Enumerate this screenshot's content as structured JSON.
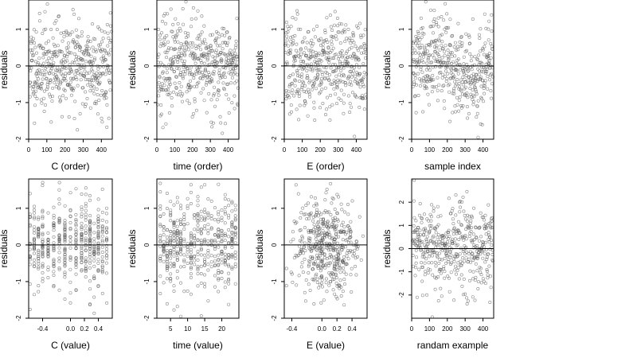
{
  "chart_data": [
    {
      "type": "scatter",
      "xlabel": "C (order)",
      "ylabel": "residuals",
      "ylim": [
        -2,
        1.8
      ],
      "xlim": [
        0,
        460
      ],
      "xticks": [
        0,
        100,
        200,
        300,
        400
      ],
      "xticklabels": [
        "0",
        "100",
        "200",
        "300",
        "400"
      ],
      "yticks": [
        -2,
        -1,
        0,
        1
      ],
      "yticklabels": [
        "-2",
        "-1",
        "0",
        "1"
      ],
      "x_pattern": "index",
      "hline": 0,
      "n": 470,
      "seed": 11,
      "spread": 0.62
    },
    {
      "type": "scatter",
      "xlabel": "time (order)",
      "ylabel": "residuals",
      "ylim": [
        -2,
        1.8
      ],
      "xlim": [
        0,
        460
      ],
      "xticks": [
        0,
        100,
        200,
        300,
        400
      ],
      "xticklabels": [
        "0",
        "100",
        "200",
        "300",
        "400"
      ],
      "yticks": [
        -2,
        -1,
        0,
        1
      ],
      "yticklabels": [
        "-2",
        "-1",
        "0",
        "1"
      ],
      "x_pattern": "index",
      "hline": 0,
      "n": 470,
      "seed": 23,
      "spread": 0.62
    },
    {
      "type": "scatter",
      "xlabel": "E (order)",
      "ylabel": "residuals",
      "ylim": [
        -2,
        1.8
      ],
      "xlim": [
        0,
        460
      ],
      "xticks": [
        0,
        100,
        200,
        300,
        400
      ],
      "xticklabels": [
        "0",
        "100",
        "200",
        "300",
        "400"
      ],
      "yticks": [
        -2,
        -1,
        0,
        1
      ],
      "yticklabels": [
        "-2",
        "-1",
        "0",
        "1"
      ],
      "x_pattern": "index",
      "hline": 0,
      "n": 470,
      "seed": 37,
      "spread": 0.62
    },
    {
      "type": "scatter",
      "xlabel": "sample index",
      "ylabel": "residuals",
      "ylim": [
        -2,
        1.8
      ],
      "xlim": [
        0,
        460
      ],
      "xticks": [
        0,
        100,
        200,
        300,
        400
      ],
      "xticklabels": [
        "0",
        "100",
        "200",
        "300",
        "400"
      ],
      "yticks": [
        -2,
        -1,
        0,
        1
      ],
      "yticklabels": [
        "-2",
        "-1",
        "0",
        "1"
      ],
      "x_pattern": "index",
      "hline": 0,
      "n": 470,
      "seed": 41,
      "spread": 0.6,
      "trend": "wave"
    },
    {
      "type": "scatter",
      "xlabel": "C (value)",
      "ylabel": "residuals",
      "ylim": [
        -2,
        1.8
      ],
      "xlim": [
        -0.6,
        0.6
      ],
      "xticks": [
        -0.4,
        0,
        0.2,
        0.4
      ],
      "xticklabels": [
        "-0.4",
        "0.0",
        "0.2",
        "0.4"
      ],
      "yticks": [
        -2,
        -1,
        0,
        1
      ],
      "yticklabels": [
        "-2",
        "-1",
        "0",
        "1"
      ],
      "x_pattern": "discrete",
      "levels": [
        -0.58,
        -0.52,
        -0.46,
        -0.4,
        -0.32,
        -0.24,
        -0.16,
        -0.08,
        0.0,
        0.08,
        0.16,
        0.22,
        0.28,
        0.34,
        0.4,
        0.46,
        0.52
      ],
      "hline": 0,
      "n": 470,
      "seed": 53,
      "spread": 0.62
    },
    {
      "type": "scatter",
      "xlabel": "time (value)",
      "ylabel": "residuals",
      "ylim": [
        -2,
        1.8
      ],
      "xlim": [
        1,
        25
      ],
      "xticks": [
        5,
        10,
        15,
        20
      ],
      "xticklabels": [
        "5",
        "10",
        "15",
        "20"
      ],
      "yticks": [
        -2,
        -1,
        0,
        1
      ],
      "yticklabels": [
        "-2",
        "-1",
        "0",
        "1"
      ],
      "x_pattern": "discrete",
      "levels": [
        2,
        3,
        4,
        5,
        6,
        7,
        8,
        9,
        10,
        11,
        12,
        13,
        14,
        15,
        16,
        17,
        18,
        19,
        20,
        21,
        22,
        23,
        24
      ],
      "hline": 0,
      "n": 470,
      "seed": 67,
      "spread": 0.62
    },
    {
      "type": "scatter",
      "xlabel": "E (value)",
      "ylabel": "residuals",
      "ylim": [
        -2,
        1.8
      ],
      "xlim": [
        -0.5,
        0.6
      ],
      "xticks": [
        -0.4,
        0,
        0.2,
        0.4
      ],
      "xticklabels": [
        "-0.4",
        "0.0",
        "0.2",
        "0.4"
      ],
      "yticks": [
        -2,
        -1,
        0,
        1
      ],
      "yticklabels": [
        "-2",
        "-1",
        "0",
        "1"
      ],
      "x_pattern": "cluster",
      "center": 0.05,
      "width": 0.22,
      "hline": 0,
      "n": 470,
      "seed": 79,
      "spread": 0.62
    },
    {
      "type": "scatter",
      "xlabel": "randam example",
      "ylabel": "residuals",
      "ylim": [
        -3,
        3
      ],
      "xlim": [
        0,
        460
      ],
      "xticks": [
        0,
        100,
        200,
        300,
        400
      ],
      "xticklabels": [
        "0",
        "100",
        "200",
        "300",
        "400"
      ],
      "yticks": [
        -2,
        -1,
        0,
        1,
        2
      ],
      "yticklabels": [
        "-2",
        "-1",
        "0",
        "1",
        "2"
      ],
      "x_pattern": "index",
      "hline": 0,
      "n": 470,
      "seed": 97,
      "spread": 1.0
    }
  ]
}
